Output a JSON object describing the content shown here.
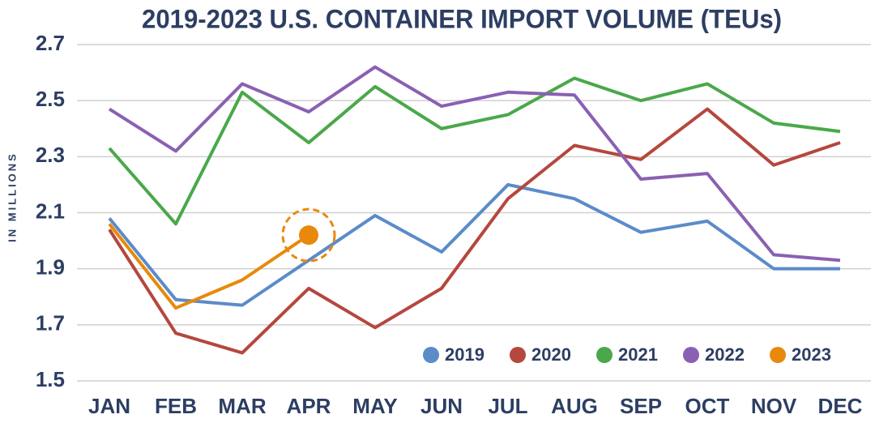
{
  "chart_data": {
    "type": "line",
    "title": "2019-2023 U.S. CONTAINER IMPORT VOLUME (TEUs)",
    "y_label": "IN MILLIONS",
    "categories": [
      "JAN",
      "FEB",
      "MAR",
      "APR",
      "MAY",
      "JUN",
      "JUL",
      "AUG",
      "SEP",
      "OCT",
      "NOV",
      "DEC"
    ],
    "series": [
      {
        "name": "2019",
        "color": "#5b8bc9",
        "values": [
          2.08,
          1.79,
          1.77,
          1.93,
          2.09,
          1.96,
          2.2,
          2.15,
          2.03,
          2.07,
          1.9,
          1.9
        ]
      },
      {
        "name": "2020",
        "color": "#b5473e",
        "values": [
          2.04,
          1.67,
          1.6,
          1.83,
          1.69,
          1.83,
          2.15,
          2.34,
          2.29,
          2.47,
          2.27,
          2.35
        ]
      },
      {
        "name": "2021",
        "color": "#4aa84a",
        "values": [
          2.33,
          2.06,
          2.53,
          2.35,
          2.55,
          2.4,
          2.45,
          2.58,
          2.5,
          2.56,
          2.42,
          2.39
        ]
      },
      {
        "name": "2022",
        "color": "#8a60b3",
        "values": [
          2.47,
          2.32,
          2.56,
          2.46,
          2.62,
          2.48,
          2.53,
          2.52,
          2.22,
          2.24,
          1.95,
          1.93
        ]
      },
      {
        "name": "2023",
        "color": "#e8890c",
        "values": [
          2.06,
          1.76,
          1.86,
          2.02,
          null,
          null,
          null,
          null,
          null,
          null,
          null,
          null
        ]
      }
    ],
    "ylim": [
      1.5,
      2.7
    ],
    "yticks": [
      1.5,
      1.7,
      1.9,
      2.1,
      2.3,
      2.5,
      2.7
    ],
    "grid": true,
    "legend": "lower right"
  }
}
